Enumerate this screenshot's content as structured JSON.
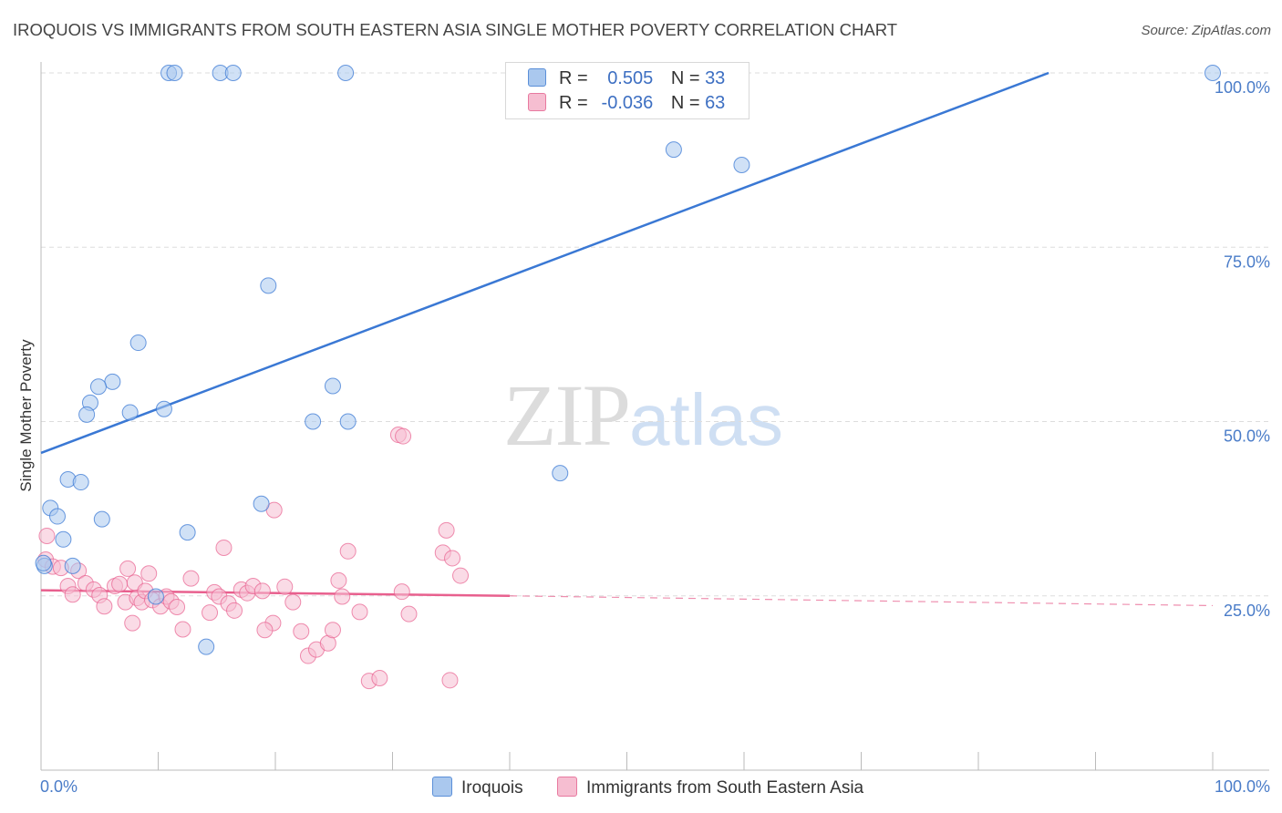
{
  "title": "IROQUOIS VS IMMIGRANTS FROM SOUTH EASTERN ASIA SINGLE MOTHER POVERTY CORRELATION CHART",
  "source": "Source: ZipAtlas.com",
  "watermark": {
    "zip": "ZIP",
    "atlas": "atlas"
  },
  "legend": {
    "row1": {
      "r_label": "R =",
      "r_value": "0.505",
      "n_label": "N =",
      "n_value": "33"
    },
    "row2": {
      "r_label": "R =",
      "r_value": "-0.036",
      "n_label": "N =",
      "n_value": "63"
    }
  },
  "bottom_legend": {
    "series1": "Iroquois",
    "series2": "Immigrants from South Eastern Asia"
  },
  "chart_data": {
    "type": "scatter",
    "title": "IROQUOIS VS IMMIGRANTS FROM SOUTH EASTERN ASIA SINGLE MOTHER POVERTY CORRELATION CHART",
    "xlabel": "",
    "ylabel": "Single Mother Poverty",
    "xlim": [
      0,
      100
    ],
    "ylim": [
      0,
      100
    ],
    "x_tick_labels": [
      "0.0%",
      "100.0%"
    ],
    "y_tick_labels": [
      "25.0%",
      "50.0%",
      "75.0%",
      "100.0%"
    ],
    "y_ticks": [
      25,
      50,
      75,
      100
    ],
    "grid": true,
    "legend_position": "top-center",
    "colors": {
      "series1": "#3a78d4",
      "series2": "#e8608e",
      "series1_fill": "#aac8ee",
      "series2_fill": "#f6bed1"
    },
    "series": [
      {
        "name": "Iroquois",
        "trend": {
          "x": [
            0,
            86
          ],
          "y": [
            45.5,
            100
          ]
        },
        "points": [
          [
            10.9,
            100
          ],
          [
            11.4,
            100
          ],
          [
            15.3,
            100
          ],
          [
            16.4,
            100
          ],
          [
            26,
            100
          ],
          [
            100,
            100
          ],
          [
            54,
            89
          ],
          [
            59.8,
            86.8
          ],
          [
            19.4,
            69.5
          ],
          [
            8.3,
            61.3
          ],
          [
            6.1,
            55.7
          ],
          [
            4.9,
            55
          ],
          [
            24.9,
            55.1
          ],
          [
            4.2,
            52.7
          ],
          [
            3.9,
            51
          ],
          [
            7.6,
            51.3
          ],
          [
            10.5,
            51.8
          ],
          [
            23.2,
            50
          ],
          [
            26.2,
            50
          ],
          [
            44.3,
            42.6
          ],
          [
            2.3,
            41.7
          ],
          [
            3.4,
            41.3
          ],
          [
            18.8,
            38.2
          ],
          [
            0.8,
            37.6
          ],
          [
            1.4,
            36.4
          ],
          [
            5.2,
            36
          ],
          [
            12.5,
            34.1
          ],
          [
            1.9,
            33.1
          ],
          [
            2.7,
            29.3
          ],
          [
            0.3,
            29.3
          ],
          [
            0.2,
            29.7
          ],
          [
            9.8,
            24.9
          ],
          [
            14.1,
            17.7
          ]
        ]
      },
      {
        "name": "Immigrants from South Eastern Asia",
        "trend": {
          "x": [
            0,
            40
          ],
          "y": [
            25.8,
            25.0
          ]
        },
        "trend_dashed": {
          "x": [
            40,
            100
          ],
          "y": [
            25.0,
            23.6
          ]
        },
        "points": [
          [
            0.5,
            33.6
          ],
          [
            0.4,
            30.2
          ],
          [
            1,
            29.2
          ],
          [
            1.7,
            29
          ],
          [
            3.2,
            28.6
          ],
          [
            7.4,
            28.9
          ],
          [
            9.2,
            28.2
          ],
          [
            12.8,
            27.5
          ],
          [
            15.6,
            31.9
          ],
          [
            19.9,
            37.3
          ],
          [
            26.2,
            31.4
          ],
          [
            34.6,
            34.4
          ],
          [
            34.3,
            31.2
          ],
          [
            35.1,
            30.4
          ],
          [
            35.8,
            27.9
          ],
          [
            30.5,
            48.1
          ],
          [
            30.9,
            47.9
          ],
          [
            2.3,
            26.4
          ],
          [
            2.7,
            25.2
          ],
          [
            3.8,
            26.8
          ],
          [
            4.5,
            25.9
          ],
          [
            5,
            25.1
          ],
          [
            5.4,
            23.5
          ],
          [
            6.3,
            26.4
          ],
          [
            6.7,
            26.7
          ],
          [
            7.2,
            24.1
          ],
          [
            8,
            26.9
          ],
          [
            8.2,
            24.7
          ],
          [
            8.6,
            24.1
          ],
          [
            8.9,
            25.7
          ],
          [
            9.5,
            24.4
          ],
          [
            10.2,
            23.5
          ],
          [
            10.7,
            24.9
          ],
          [
            11.1,
            24.2
          ],
          [
            11.6,
            23.4
          ],
          [
            14.4,
            22.6
          ],
          [
            14.8,
            25.5
          ],
          [
            15.2,
            24.9
          ],
          [
            16,
            23.9
          ],
          [
            16.5,
            22.9
          ],
          [
            17.1,
            25.9
          ],
          [
            17.6,
            25.4
          ],
          [
            18.1,
            26.4
          ],
          [
            18.9,
            25.7
          ],
          [
            19.8,
            21.1
          ],
          [
            20.8,
            26.3
          ],
          [
            21.5,
            24.1
          ],
          [
            22.2,
            19.9
          ],
          [
            22.8,
            16.4
          ],
          [
            23.5,
            17.3
          ],
          [
            24.5,
            18.2
          ],
          [
            24.9,
            20.1
          ],
          [
            25.4,
            27.2
          ],
          [
            25.7,
            24.9
          ],
          [
            27.2,
            22.7
          ],
          [
            28,
            12.8
          ],
          [
            28.9,
            13.2
          ],
          [
            30.8,
            25.6
          ],
          [
            31.4,
            22.4
          ],
          [
            34.9,
            12.9
          ],
          [
            7.8,
            21.1
          ],
          [
            12.1,
            20.2
          ],
          [
            19.1,
            20.1
          ]
        ]
      }
    ]
  }
}
